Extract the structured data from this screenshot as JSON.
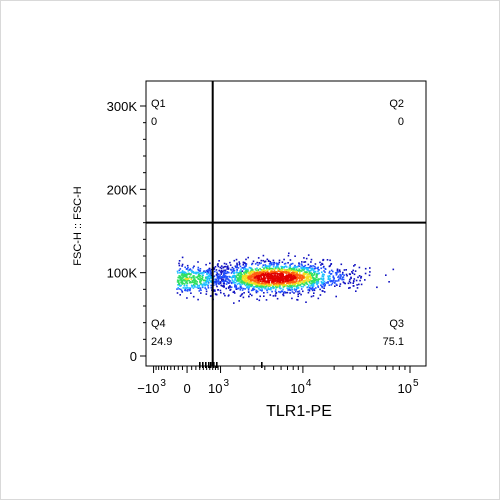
{
  "chart_data": {
    "type": "scatter",
    "subtype": "flow-cytometry-pseudocolor-density",
    "xlabel": "TLR1-PE",
    "ylabel": "FSC-H :: FSC-H",
    "x_scale": "biexponential",
    "y_scale": "linear",
    "x_ticks": [
      {
        "base": "−10",
        "exp": "3",
        "value": -1000
      },
      {
        "base": "0",
        "exp": "",
        "value": 0
      },
      {
        "base": "10",
        "exp": "3",
        "value": 1000
      },
      {
        "base": "10",
        "exp": "4",
        "value": 10000
      },
      {
        "base": "10",
        "exp": "5",
        "value": 100000
      }
    ],
    "y_ticks": [
      {
        "label": "0",
        "value": 0
      },
      {
        "label": "100K",
        "value": 100000
      },
      {
        "label": "200K",
        "value": 200000
      },
      {
        "label": "300K",
        "value": 300000
      }
    ],
    "ylim": [
      0,
      320000
    ],
    "gates": {
      "x_threshold": 700,
      "y_threshold": 160000
    },
    "quadrants": [
      {
        "name": "Q1",
        "value": "0",
        "position": "top-left"
      },
      {
        "name": "Q2",
        "value": "0",
        "position": "top-right"
      },
      {
        "name": "Q3",
        "value": "75.1",
        "position": "bottom-right"
      },
      {
        "name": "Q4",
        "value": "24.9",
        "position": "bottom-left"
      }
    ],
    "populations": [
      {
        "x_center": 0,
        "x_spread": 600,
        "y_center": 93000,
        "y_spread": 9000,
        "share": 0.249
      },
      {
        "x_center": 5000,
        "x_spread_log10": 0.35,
        "y_center": 95000,
        "y_spread": 9000,
        "share": 0.751
      }
    ],
    "density_colors": [
      "#1010c0",
      "#2050ff",
      "#20c0ff",
      "#30e060",
      "#f0e020",
      "#ff6010",
      "#e00000"
    ],
    "grid": false,
    "legend": "none"
  }
}
